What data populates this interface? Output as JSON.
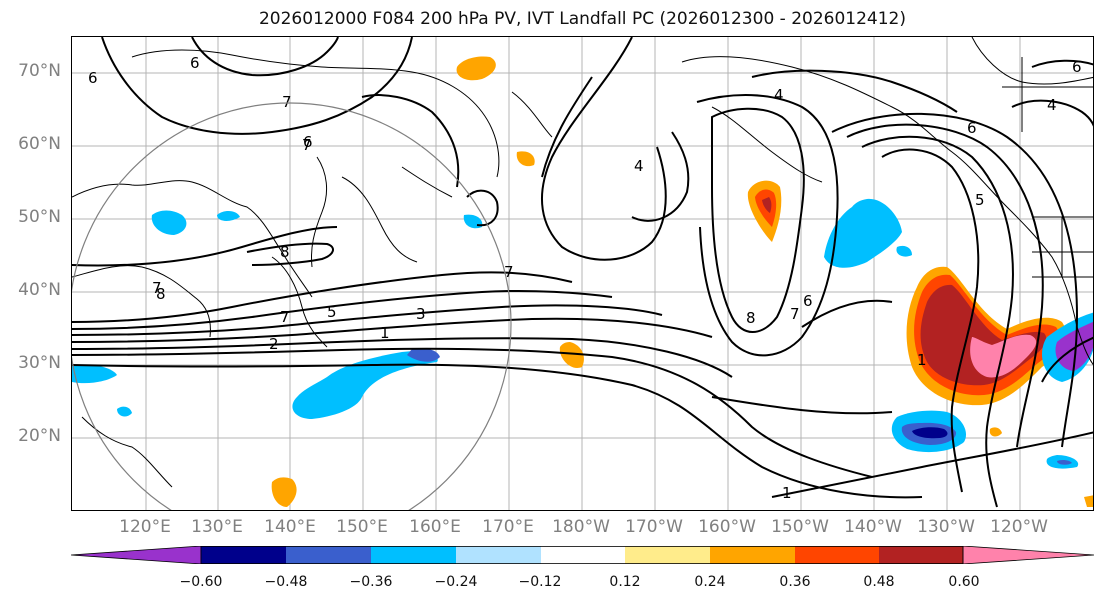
{
  "title": "2026012000 F084 200 hPa PV, IVT Landfall PC (2026012300 - 2026012412)",
  "lat_labels": [
    "70°N",
    "60°N",
    "50°N",
    "40°N",
    "30°N",
    "20°N"
  ],
  "lon_labels": [
    "120°E",
    "130°E",
    "140°E",
    "150°E",
    "160°E",
    "170°E",
    "180°W",
    "170°W",
    "160°W",
    "150°W",
    "140°W",
    "130°W",
    "120°W"
  ],
  "contour_labels": [
    "6",
    "7",
    "6",
    "7",
    "4",
    "6",
    "8",
    "7",
    "7",
    "5",
    "3",
    "1",
    "2",
    "7",
    "4",
    "8",
    "7",
    "6",
    "1",
    "5",
    "4",
    "6",
    "6",
    "8",
    "1"
  ],
  "colorbar": {
    "ticks": [
      "−0.60",
      "−0.48",
      "−0.36",
      "−0.24",
      "−0.12",
      "0.12",
      "0.24",
      "0.36",
      "0.48",
      "0.60"
    ],
    "colors": [
      "#9932cc",
      "#00008b",
      "#3a5fcd",
      "#00bfff",
      "#b0e2ff",
      "#ffffff",
      "#ffec8b",
      "#ffa500",
      "#ff4500",
      "#b22222",
      "#ff82ab"
    ]
  },
  "colors": {
    "positive_strong": "#b22222",
    "positive_mid": "#ff4500",
    "positive_low": "#ffa500",
    "negative_low": "#00bfff",
    "negative_mid": "#3a5fcd",
    "negative_strong": "#00008b",
    "negative_extreme": "#9932cc"
  }
}
